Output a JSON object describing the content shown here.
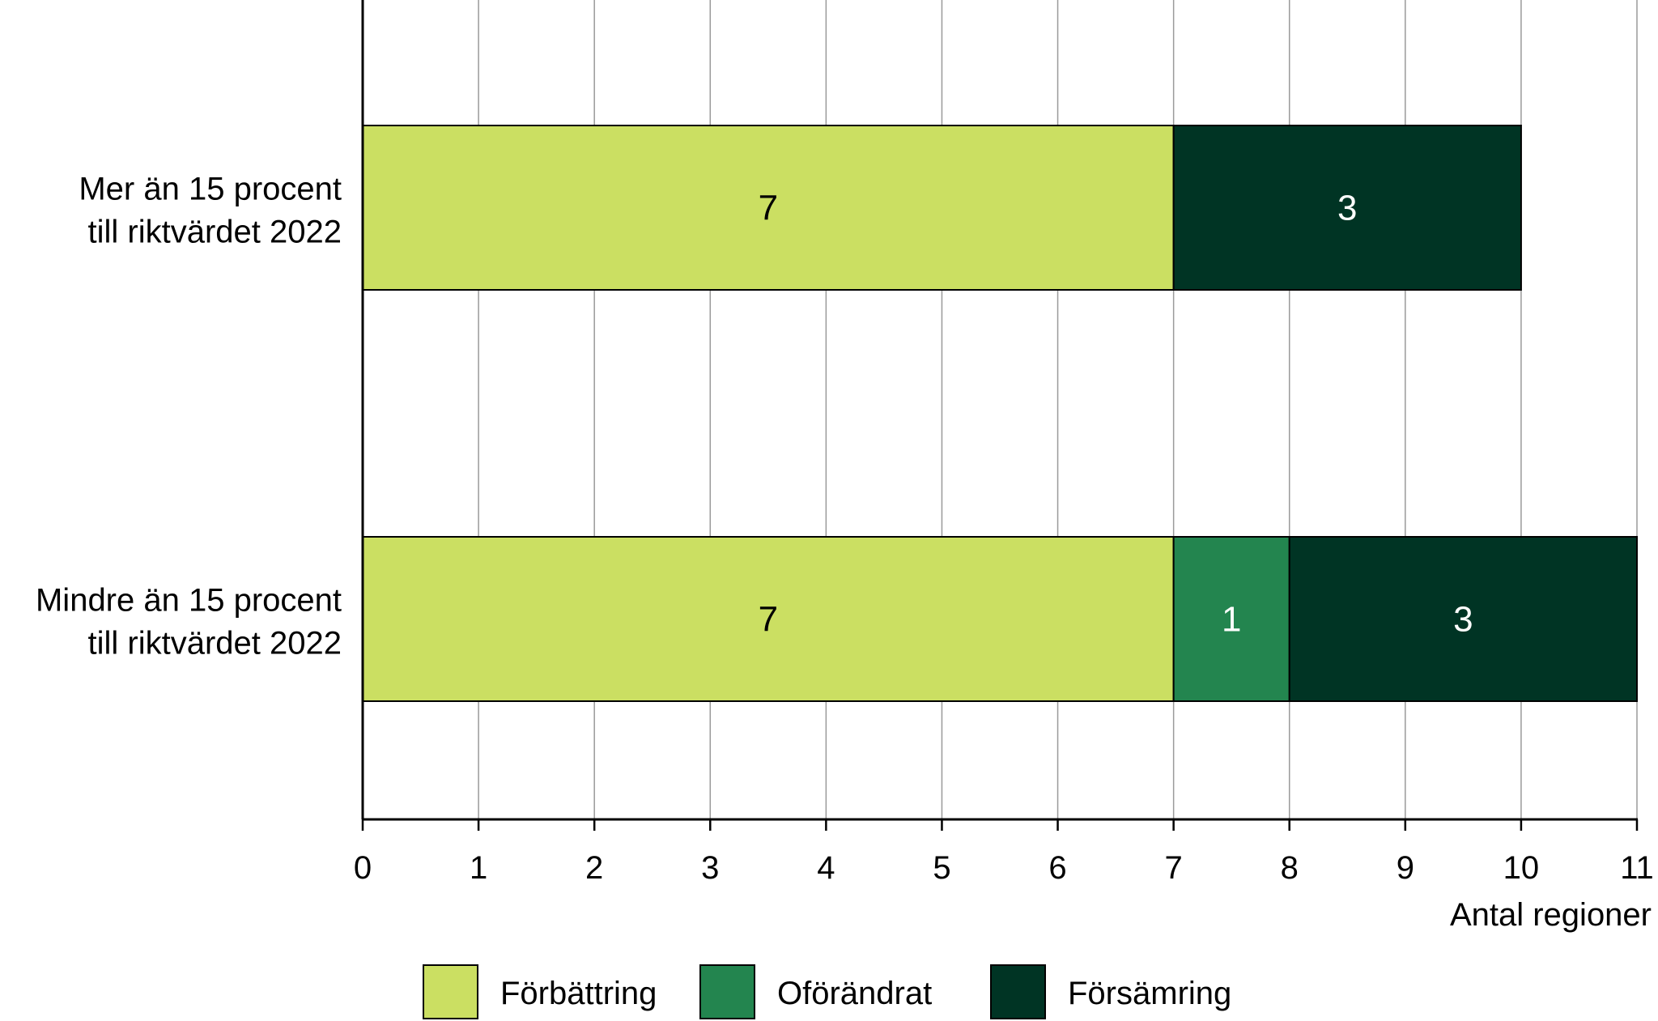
{
  "chart_data": {
    "type": "bar",
    "orientation": "horizontal",
    "stacked": true,
    "categories": [
      [
        "Mer än 15 procent",
        "till riktvärdet 2022"
      ],
      [
        "Mindre än 15 procent",
        "till riktvärdet 2022"
      ]
    ],
    "series": [
      {
        "name": "Förbättring",
        "values": [
          7,
          7
        ],
        "color": "#cbdf62",
        "label_color": "#000000"
      },
      {
        "name": "Oförändrat",
        "values": [
          0,
          1
        ],
        "color": "#23854f",
        "label_color": "#ffffff"
      },
      {
        "name": "Försämring",
        "values": [
          3,
          3
        ],
        "color": "#003424",
        "label_color": "#ffffff"
      }
    ],
    "xlabel": "Antal regioner",
    "xlim": [
      0,
      11
    ],
    "xticks": [
      0,
      1,
      2,
      3,
      4,
      5,
      6,
      7,
      8,
      9,
      10,
      11
    ],
    "grid": "vertical",
    "legend": "bottom-center"
  }
}
